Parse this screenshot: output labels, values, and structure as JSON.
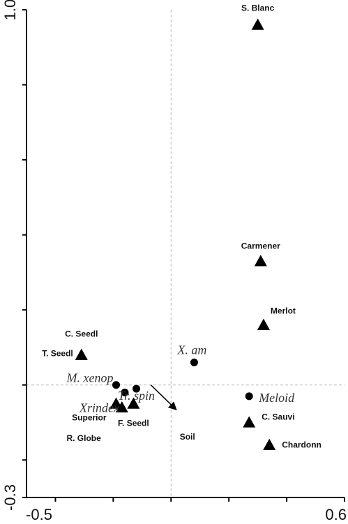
{
  "chart_data": {
    "type": "scatter",
    "title": "",
    "xlabel": "",
    "ylabel": "",
    "xlim": [
      -0.5,
      0.6
    ],
    "ylim": [
      -0.3,
      1.0
    ],
    "x_tick_labels": [
      "-0.5",
      "0.6"
    ],
    "y_tick_labels": [
      "1.0",
      "-0.3"
    ],
    "reference_lines": {
      "x": 0,
      "y": 0
    },
    "sites": {
      "marker": "triangle",
      "points": [
        {
          "label": "S. Blanc",
          "x": 0.3,
          "y": 0.96
        },
        {
          "label": "Carmener",
          "x": 0.31,
          "y": 0.33
        },
        {
          "label": "Merlot",
          "x": 0.32,
          "y": 0.16
        },
        {
          "label": "C. Seedl",
          "x": -0.31,
          "y": 0.08
        },
        {
          "label": "T. Seedl",
          "x": -0.31,
          "y": 0.08
        },
        {
          "label": "C. Sauvi",
          "x": 0.27,
          "y": -0.1
        },
        {
          "label": "Chardonn",
          "x": 0.34,
          "y": -0.16
        },
        {
          "label": "Superior",
          "x": -0.19,
          "y": -0.05
        },
        {
          "label": "R. Globe",
          "x": -0.17,
          "y": -0.06
        },
        {
          "label": "F. Seedl",
          "x": -0.13,
          "y": -0.05
        }
      ]
    },
    "species": {
      "marker": "circle",
      "points": [
        {
          "label": "X. am",
          "x": 0.08,
          "y": 0.06
        },
        {
          "label": "M. xenop",
          "x": -0.19,
          "y": 0.0
        },
        {
          "label": "Xrindex",
          "x": -0.16,
          "y": -0.02
        },
        {
          "label": "Tr. spin",
          "x": -0.12,
          "y": -0.01
        },
        {
          "label": "Meloid",
          "x": 0.27,
          "y": -0.03
        }
      ]
    },
    "environmental_vectors": [
      {
        "label": "Soil",
        "x": 0.08,
        "y": -0.12
      }
    ],
    "colors": {
      "marker": "#000000",
      "reference_line": "#bbbbbb"
    }
  }
}
